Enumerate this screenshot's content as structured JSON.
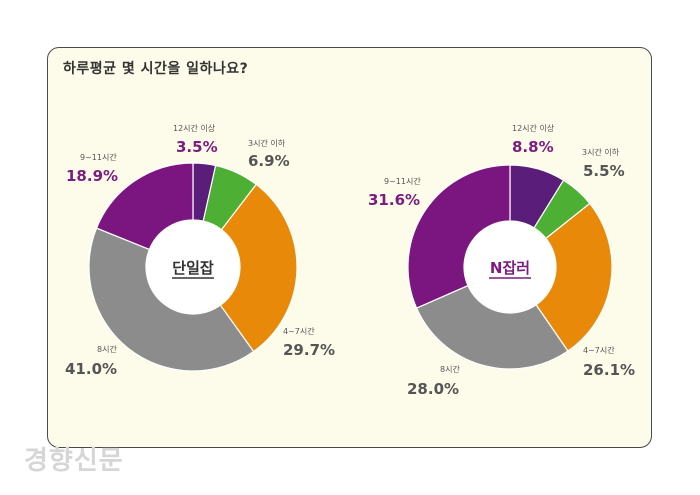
{
  "title": "하루평균 몇 시간을 일하나요?",
  "colors": {
    "purple_dark": "#5a1e7a",
    "green": "#4db035",
    "orange": "#e9890a",
    "gray": "#8c8c8c",
    "purple": "#7b157f",
    "label_purple": "#7a1d7e",
    "label_gray": "#555555"
  },
  "chart_data": [
    {
      "type": "pie",
      "center_label": "단일잡",
      "categories": [
        "12시간 이상",
        "3시간 이하",
        "4~7시간",
        "8시간",
        "9~11시간"
      ],
      "values": [
        3.5,
        6.9,
        29.7,
        41.0,
        18.9
      ],
      "value_labels": [
        "3.5%",
        "6.9%",
        "29.7%",
        "41.0%",
        "18.9%"
      ]
    },
    {
      "type": "pie",
      "center_label": "N잡러",
      "categories": [
        "12시간 이상",
        "3시간 이하",
        "4~7시간",
        "8시간",
        "9~11시간"
      ],
      "values": [
        8.8,
        5.5,
        26.1,
        28.0,
        31.6
      ],
      "value_labels": [
        "8.8%",
        "5.5%",
        "26.1%",
        "28.0%",
        "31.6%"
      ]
    }
  ],
  "watermark": "경향신문"
}
